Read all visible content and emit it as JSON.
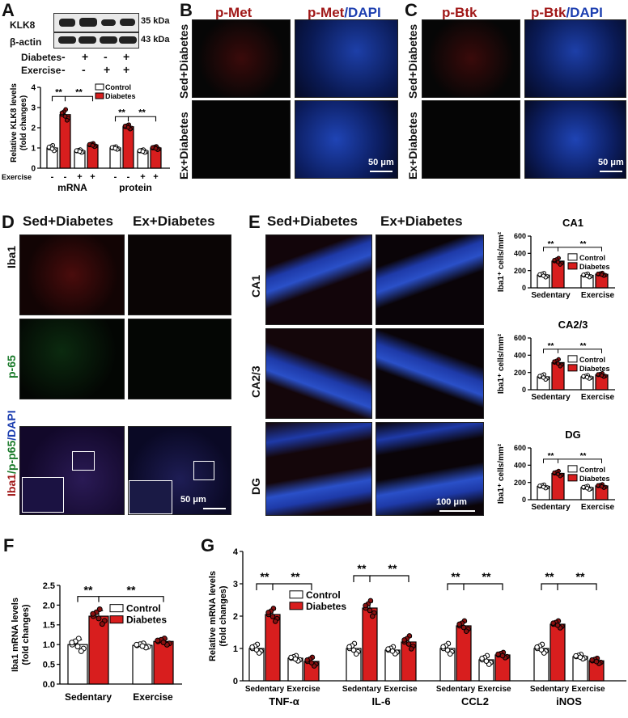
{
  "colors": {
    "control": "#ffffff",
    "diabetes": "#d81e1e",
    "axis": "#000000"
  },
  "panelA": {
    "letter": "A",
    "blots": [
      {
        "name": "KLK8",
        "kda": "35 kDa"
      },
      {
        "name": "β-actin",
        "kda": "43 kDa"
      }
    ],
    "diabetes_row": {
      "label": "Diabetes",
      "signs": [
        "-",
        "+",
        "-",
        "+"
      ]
    },
    "exercise_row": {
      "label": "Exercise",
      "signs": [
        "-",
        "-",
        "+",
        "+"
      ]
    }
  },
  "panelB": {
    "letter": "B",
    "col1": "p-Met",
    "col2a": "p-Met",
    "col2b": "/DAPI",
    "row1": "Sed+Diabetes",
    "row2": "Ex+Diabetes",
    "scale": "50 μm"
  },
  "panelC": {
    "letter": "C",
    "col1": "p-Btk",
    "col2a": "p-Btk",
    "col2b": "/DAPI",
    "row1": "Sed+Diabetes",
    "row2": "Ex+Diabetes",
    "scale": "50 μm"
  },
  "panelD": {
    "letter": "D",
    "col1": "Sed+Diabetes",
    "col2": "Ex+Diabetes",
    "row1": "Iba1",
    "row2": "p-65",
    "row3a": "Iba1",
    "row3b": "/p-p65",
    "row3c": "/DAPI",
    "scale": "50 μm"
  },
  "panelE": {
    "letter": "E",
    "col1": "Sed+Diabetes",
    "col2": "Ex+Diabetes",
    "rows": [
      "CA1",
      "CA2/3",
      "DG"
    ],
    "scale": "100 μm"
  },
  "panelF": {
    "letter": "F"
  },
  "panelG": {
    "letter": "G"
  },
  "chart_data": [
    {
      "id": "A",
      "type": "bar",
      "ylabel": "Relative KLK8 levels (fold changes)",
      "ylim": [
        0,
        4
      ],
      "yticks": [
        0,
        1,
        2,
        3,
        4
      ],
      "groups": [
        "mRNA",
        "protein"
      ],
      "exercise_label": "Exercise",
      "exercise_signs": [
        "-",
        "-",
        "+",
        "+"
      ],
      "series": [
        {
          "name": "Control"
        },
        {
          "name": "Diabetes"
        }
      ],
      "values": [
        [
          1.0,
          2.65,
          0.85,
          1.15
        ],
        [
          1.0,
          2.05,
          0.85,
          1.0
        ]
      ],
      "errors": [
        [
          0.1,
          0.2,
          0.05,
          0.06
        ],
        [
          0.05,
          0.08,
          0.05,
          0.06
        ]
      ],
      "sig": "**",
      "legend": [
        "Control",
        "Diabetes"
      ]
    },
    {
      "id": "CA1",
      "type": "bar",
      "title": "CA1",
      "ylabel": "Iba1⁺ cells/mm²",
      "ylim": [
        0,
        600
      ],
      "yticks": [
        0,
        200,
        400,
        600
      ],
      "categories": [
        "Sedentary",
        "Exercise"
      ],
      "series": [
        {
          "name": "Control",
          "values": [
            148,
            145
          ]
        },
        {
          "name": "Diabetes",
          "values": [
            310,
            158
          ]
        }
      ],
      "errors": [
        [
          18,
          15
        ],
        [
          28,
          12
        ]
      ],
      "sig": "**",
      "legend": [
        "Control",
        "Diabetes"
      ]
    },
    {
      "id": "CA23",
      "type": "bar",
      "title": "CA2/3",
      "ylabel": "Iba1⁺ cells/mm²",
      "ylim": [
        0,
        600
      ],
      "yticks": [
        0,
        200,
        400,
        600
      ],
      "categories": [
        "Sedentary",
        "Exercise"
      ],
      "series": [
        {
          "name": "Control",
          "values": [
            150,
            150
          ]
        },
        {
          "name": "Diabetes",
          "values": [
            315,
            172
          ]
        }
      ],
      "errors": [
        [
          22,
          14
        ],
        [
          30,
          15
        ]
      ],
      "sig": "**",
      "legend": [
        "Control",
        "Diabetes"
      ]
    },
    {
      "id": "DG",
      "type": "bar",
      "title": "DG",
      "ylabel": "Iba1⁺ cells/mm²",
      "ylim": [
        0,
        600
      ],
      "yticks": [
        0,
        200,
        400,
        600
      ],
      "categories": [
        "Sedentary",
        "Exercise"
      ],
      "series": [
        {
          "name": "Control",
          "values": [
            155,
            140
          ]
        },
        {
          "name": "Diabetes",
          "values": [
            305,
            160
          ]
        }
      ],
      "errors": [
        [
          15,
          15
        ],
        [
          22,
          15
        ]
      ],
      "sig": "**",
      "legend": [
        "Control",
        "Diabetes"
      ]
    },
    {
      "id": "F",
      "type": "bar",
      "ylabel": "Iba1 mRNA levels (fold changes)",
      "ylim": [
        0,
        2.5
      ],
      "yticks": [
        "0.0",
        "0.5",
        "1.0",
        "1.5",
        "2.0",
        "2.5"
      ],
      "categories": [
        "Sedentary",
        "Exercise"
      ],
      "series": [
        {
          "name": "Control",
          "values": [
            1.0,
            0.98
          ]
        },
        {
          "name": "Diabetes",
          "values": [
            1.72,
            1.08
          ]
        }
      ],
      "errors": [
        [
          0.12,
          0.04
        ],
        [
          0.14,
          0.06
        ]
      ],
      "sig": "**",
      "legend": [
        "Control",
        "Diabetes"
      ]
    },
    {
      "id": "G",
      "type": "bar",
      "ylabel": "Relative mRNA levels (fold changes)",
      "ylim": [
        0,
        4
      ],
      "yticks": [
        0,
        1,
        2,
        3,
        4
      ],
      "genes": [
        "TNF-α",
        "IL-6",
        "CCL2",
        "iNOS"
      ],
      "categories": [
        "Sedentary",
        "Exercise"
      ],
      "series": [
        {
          "name": "Control"
        },
        {
          "name": "Diabetes"
        }
      ],
      "values": [
        [
          1.0,
          2.05,
          0.7,
          0.6
        ],
        [
          1.0,
          2.25,
          0.95,
          1.2
        ],
        [
          1.0,
          1.7,
          0.65,
          0.8
        ],
        [
          1.0,
          1.75,
          0.75,
          0.62
        ]
      ],
      "errors": [
        [
          0.1,
          0.15,
          0.06,
          0.1
        ],
        [
          0.12,
          0.18,
          0.08,
          0.15
        ],
        [
          0.12,
          0.12,
          0.1,
          0.06
        ],
        [
          0.1,
          0.08,
          0.05,
          0.06
        ]
      ],
      "sig": "**",
      "legend": [
        "Control",
        "Diabetes"
      ]
    }
  ]
}
